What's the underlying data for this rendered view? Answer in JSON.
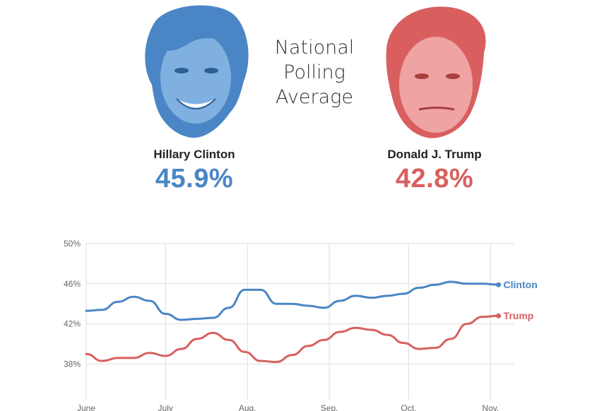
{
  "header": {
    "title_lines": [
      "National",
      "Polling",
      "Average"
    ]
  },
  "candidates": [
    {
      "name": "Hillary Clinton",
      "pct": "45.9%",
      "color": "#4a86c5",
      "portrait_icon": "clinton-portrait-icon"
    },
    {
      "name": "Donald J. Trump",
      "pct": "42.8%",
      "color": "#d95f5f",
      "portrait_icon": "trump-portrait-icon"
    }
  ],
  "chart_data": {
    "type": "line",
    "title": "",
    "xlabel": "",
    "ylabel": "",
    "ylim": [
      35,
      50
    ],
    "yticks": [
      "50%",
      "46%",
      "42%",
      "38%"
    ],
    "ytick_values": [
      50,
      46,
      42,
      38
    ],
    "xlim": [
      "2016-06-01",
      "2016-11-10"
    ],
    "x_tick_labels": [
      "June",
      "July",
      "Aug.",
      "Sep.",
      "Oct.",
      "Nov."
    ],
    "x_tick_dates": [
      "2016-06-01",
      "2016-07-01",
      "2016-08-01",
      "2016-09-01",
      "2016-10-01",
      "2016-11-01"
    ],
    "grid": true,
    "legend": "end-of-line labels",
    "x": [
      "2016-06-01",
      "2016-06-07",
      "2016-06-13",
      "2016-06-19",
      "2016-06-25",
      "2016-07-01",
      "2016-07-07",
      "2016-07-13",
      "2016-07-19",
      "2016-07-25",
      "2016-07-31",
      "2016-08-06",
      "2016-08-12",
      "2016-08-18",
      "2016-08-24",
      "2016-08-30",
      "2016-09-05",
      "2016-09-11",
      "2016-09-17",
      "2016-09-23",
      "2016-09-29",
      "2016-10-05",
      "2016-10-11",
      "2016-10-17",
      "2016-10-23",
      "2016-10-29",
      "2016-11-04"
    ],
    "series": [
      {
        "name": "Clinton",
        "color": "#4a86c5",
        "values": [
          43.3,
          43.4,
          44.2,
          44.7,
          44.3,
          43.0,
          42.4,
          42.5,
          42.6,
          43.6,
          45.4,
          45.4,
          44.0,
          44.0,
          43.8,
          43.6,
          44.3,
          44.8,
          44.6,
          44.8,
          45.0,
          45.6,
          45.9,
          46.2,
          46.0,
          46.0,
          45.9
        ]
      },
      {
        "name": "Trump",
        "color": "#d95f5f",
        "values": [
          39.0,
          38.3,
          38.6,
          38.6,
          39.1,
          38.8,
          39.5,
          40.5,
          41.1,
          40.4,
          39.2,
          38.3,
          38.2,
          38.9,
          39.8,
          40.4,
          41.2,
          41.6,
          41.4,
          40.9,
          40.1,
          39.5,
          39.6,
          40.5,
          42.0,
          42.7,
          42.8
        ]
      }
    ]
  }
}
